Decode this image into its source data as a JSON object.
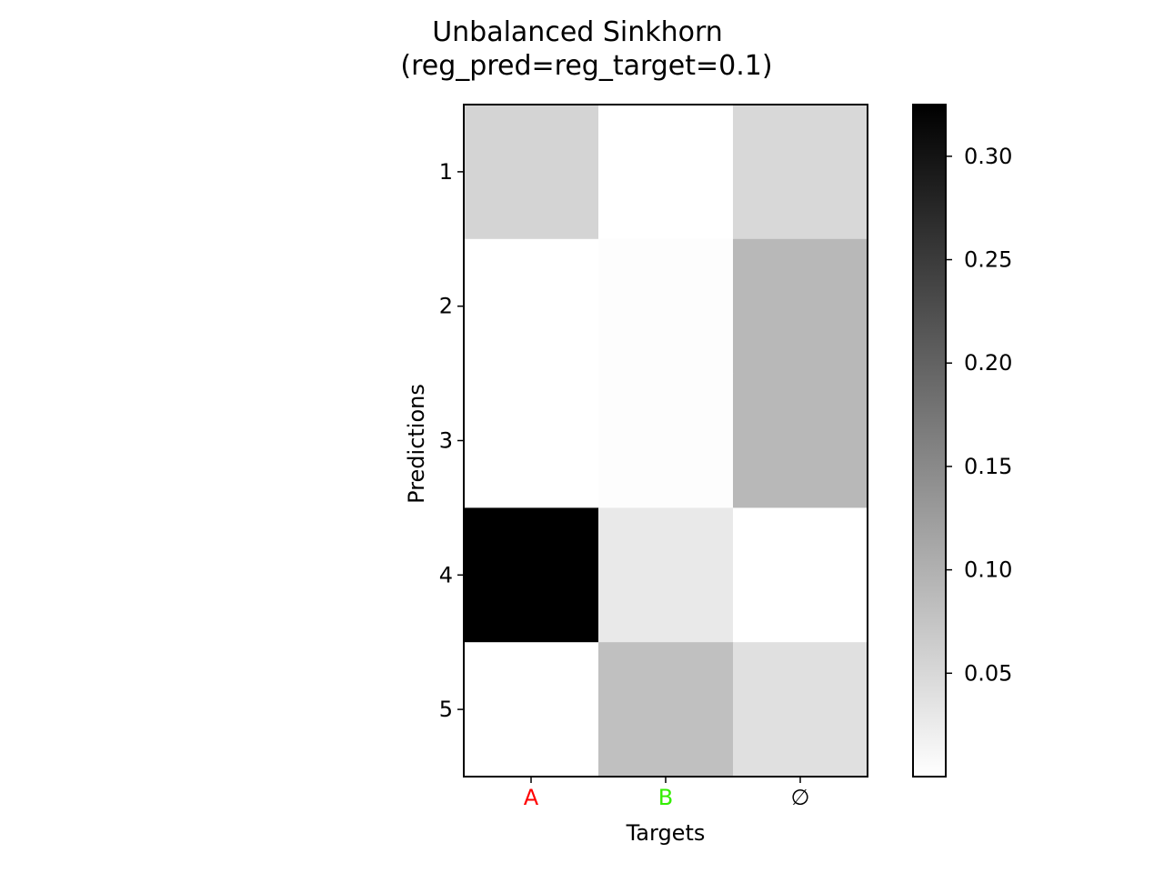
{
  "chart_data": {
    "type": "heatmap",
    "title_line1": "Unbalanced Sinkhorn",
    "title_line2": "(reg_pred=reg_target=0.1)",
    "xlabel": "Targets",
    "ylabel": "Predictions",
    "x_categories": [
      {
        "label": "A",
        "color": "#ff0000"
      },
      {
        "label": "B",
        "color": "#33ee00"
      },
      {
        "label": "∅",
        "color": "#000000"
      }
    ],
    "y_categories": [
      "1",
      "2",
      "3",
      "4",
      "5"
    ],
    "values": [
      [
        0.055,
        0.0,
        0.05
      ],
      [
        0.0,
        0.003,
        0.09
      ],
      [
        0.0,
        0.003,
        0.09
      ],
      [
        0.325,
        0.028,
        0.0
      ],
      [
        0.0,
        0.08,
        0.04
      ]
    ],
    "colormap": "Greys",
    "colorbar": {
      "vmin": 0.0,
      "vmax": 0.325,
      "ticks": [
        0.05,
        0.1,
        0.15,
        0.2,
        0.25,
        0.3
      ],
      "tick_labels": [
        "0.05",
        "0.10",
        "0.15",
        "0.20",
        "0.25",
        "0.30"
      ]
    }
  }
}
